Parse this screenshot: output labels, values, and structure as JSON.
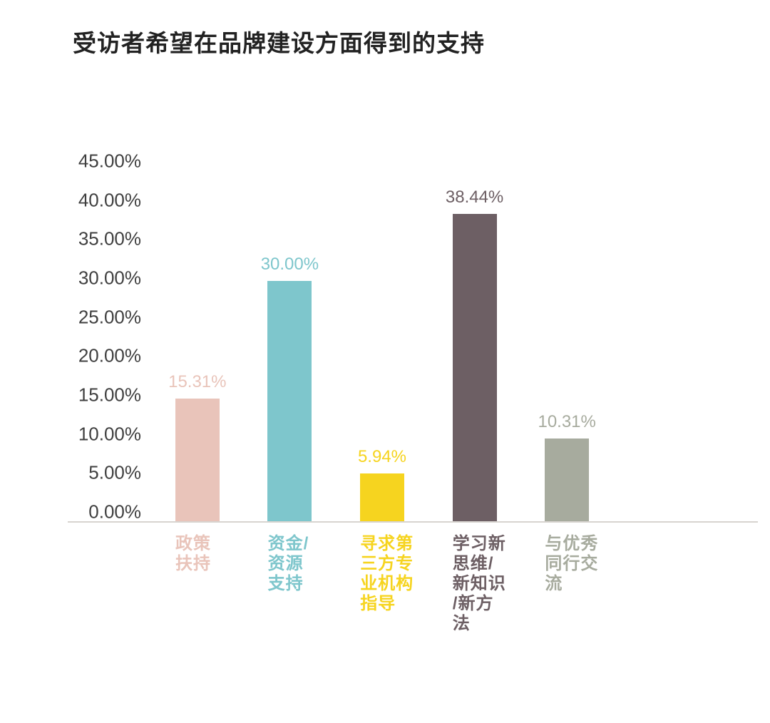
{
  "page": {
    "title": "受访者希望在品牌建设方面得到的支持"
  },
  "chart_data": {
    "type": "bar",
    "title": "受访者希望在品牌建设方面得到的支持",
    "categories": [
      "政策扶持",
      "资金/资源支持",
      "寻求第三方专业机构指导",
      "学习新思维/新知识/新方法",
      "与优秀同行交流"
    ],
    "categories_wrapped": [
      [
        "政策",
        "扶持"
      ],
      [
        "资金/",
        "资源",
        "支持"
      ],
      [
        "寻求第",
        "三方专",
        "业机构",
        "指导"
      ],
      [
        "学习新",
        "思维/",
        "新知识",
        "/新方",
        "法"
      ],
      [
        "与优秀",
        "同行交",
        "流"
      ]
    ],
    "values": [
      15.31,
      30.0,
      5.94,
      38.44,
      10.31
    ],
    "value_labels": [
      "15.31%",
      "30.00%",
      "5.94%",
      "38.44%",
      "10.31%"
    ],
    "colors": [
      "#e9c4ba",
      "#7ec6cc",
      "#f6d41f",
      "#6d5f64",
      "#a7ab9e"
    ],
    "xlabel": "",
    "ylabel": "",
    "ylim": [
      0,
      45
    ],
    "yticks": [
      "45.00%",
      "40.00%",
      "35.00%",
      "30.00%",
      "25.00%",
      "20.00%",
      "15.00%",
      "10.00%",
      "5.00%",
      "0.00%"
    ],
    "grid": "off",
    "legend": "none"
  },
  "colors": {
    "title_text": "#222222",
    "axis_text": "#3f3f3f",
    "baseline": "#d8d4d0",
    "background": "#ffffff"
  }
}
